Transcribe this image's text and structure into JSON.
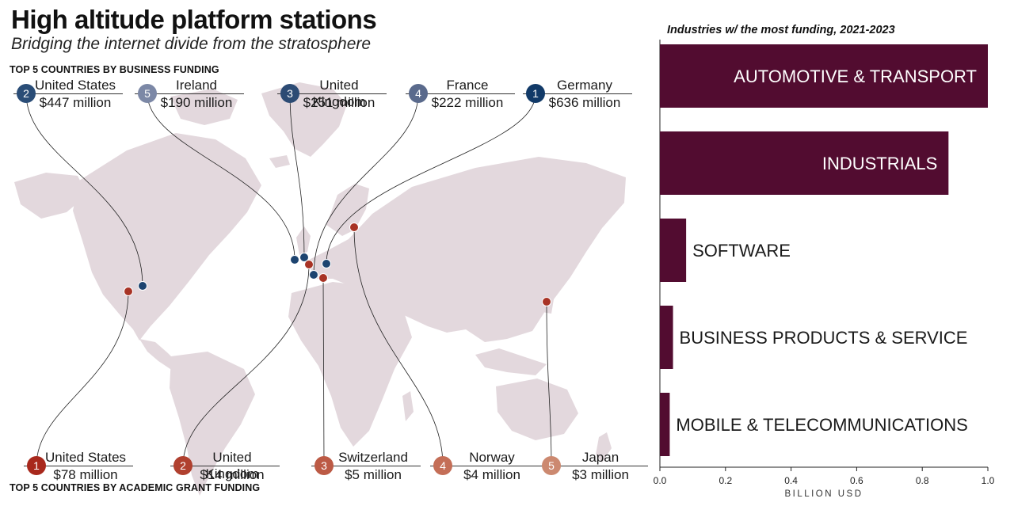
{
  "header": {
    "title": "High altitude platform stations",
    "subtitle": "Bridging the internet divide from the stratosphere"
  },
  "map": {
    "business_label": "TOP 5 COUNTRIES BY BUSINESS FUNDING",
    "academic_label": "TOP 5 COUNTRIES BY ACADEMIC GRANT FUNDING",
    "business_color": "#1d4470",
    "academic_color": "#a83325",
    "land_color": "#e3d8dd",
    "business_countries": [
      {
        "rank": "2",
        "name": "United States",
        "amount": "$447 million",
        "badge_color": "#2a4d77"
      },
      {
        "rank": "5",
        "name": "Ireland",
        "amount": "$190 million",
        "badge_color": "#7c88a6"
      },
      {
        "rank": "3",
        "name": "United Kingdom",
        "amount": "$251 million",
        "badge_color": "#2c4b74"
      },
      {
        "rank": "4",
        "name": "France",
        "amount": "$222 million",
        "badge_color": "#5a6a8c"
      },
      {
        "rank": "1",
        "name": "Germany",
        "amount": "$636 million",
        "badge_color": "#123a68"
      }
    ],
    "academic_countries": [
      {
        "rank": "1",
        "name": "United States",
        "amount": "$78 million",
        "badge_color": "#a8281c"
      },
      {
        "rank": "2",
        "name": "United Kingdom",
        "amount": "$14 million",
        "badge_color": "#b0402f"
      },
      {
        "rank": "3",
        "name": "Switzerland",
        "amount": "$5 million",
        "badge_color": "#bc5a45"
      },
      {
        "rank": "4",
        "name": "Norway",
        "amount": "$4 million",
        "badge_color": "#c46e57"
      },
      {
        "rank": "5",
        "name": "Japan",
        "amount": "$3 million",
        "badge_color": "#cc8970"
      }
    ]
  },
  "chart_data": {
    "type": "bar",
    "orientation": "horizontal",
    "title": "Industries w/ the most funding, 2021-2023",
    "xlabel": "BILLION USD",
    "ylabel": "",
    "xlim": [
      0,
      1.0
    ],
    "xticks": [
      "0.0",
      "0.2",
      "0.4",
      "0.6",
      "0.8",
      "1.0"
    ],
    "categories": [
      "AUTOMOTIVE & TRANSPORT",
      "INDUSTRIALS",
      "SOFTWARE",
      "BUSINESS PRODUCTS & SERVICE",
      "MOBILE & TELECOMMUNICATIONS"
    ],
    "values": [
      1.0,
      0.88,
      0.08,
      0.04,
      0.03
    ],
    "bar_color": "#520c30",
    "grid": false
  }
}
